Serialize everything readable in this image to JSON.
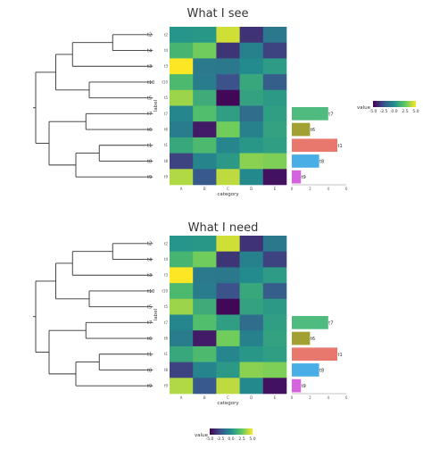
{
  "chart_data": [
    {
      "type": "heatmap",
      "title": "What I see",
      "tips": [
        "t2",
        "t4",
        "t3",
        "t10",
        "t5",
        "t7",
        "t6",
        "t1",
        "t8",
        "t9"
      ],
      "categories": [
        "A",
        "B",
        "C",
        "D",
        "E"
      ],
      "xlabel": "category",
      "ylabel": "label",
      "values": [
        [
          0.2,
          0.3,
          4.3,
          -3.5,
          -1.0
        ],
        [
          1.6,
          2.8,
          -3.4,
          -0.6,
          -3.0
        ],
        [
          5.5,
          -0.9,
          -1.0,
          -0.2,
          0.5
        ],
        [
          1.8,
          -0.8,
          -2.5,
          1.0,
          -2.0
        ],
        [
          3.5,
          1.2,
          -4.8,
          0.8,
          0.4
        ],
        [
          -0.4,
          2.0,
          0.6,
          -1.4,
          0.6
        ],
        [
          -0.8,
          -4.2,
          2.8,
          -0.6,
          0.8
        ],
        [
          1.0,
          1.8,
          -0.4,
          0.3,
          0.6
        ],
        [
          -3.0,
          -0.5,
          0.4,
          3.2,
          3.0
        ],
        [
          3.8,
          -2.2,
          4.0,
          -0.3,
          -4.5
        ]
      ],
      "bars": {
        "type": "bar",
        "labels": [
          "t7",
          "t6",
          "t1",
          "t8",
          "t9"
        ],
        "values": [
          4,
          2,
          5,
          3,
          1
        ],
        "colors": [
          "#4fbb7e",
          "#a1a132",
          "#e8776e",
          "#4aaee6",
          "#d762e0"
        ],
        "xticks": [
          "0",
          "2",
          "4",
          "6"
        ],
        "xlim": [
          0,
          6
        ]
      },
      "legend": {
        "title": "value",
        "ticks": [
          "-5.0",
          "-2.5",
          "0.0",
          "2.5",
          "5.0"
        ],
        "placement": "right"
      }
    },
    {
      "type": "heatmap",
      "title": "What I need",
      "tips": [
        "t2",
        "t4",
        "t3",
        "t10",
        "t5",
        "t7",
        "t6",
        "t1",
        "t8",
        "t9"
      ],
      "categories": [
        "A",
        "B",
        "C",
        "D",
        "E"
      ],
      "xlabel": "category",
      "ylabel": "label",
      "values": [
        [
          0.2,
          0.3,
          4.3,
          -3.5,
          -1.0
        ],
        [
          1.6,
          2.8,
          -3.4,
          -0.6,
          -3.0
        ],
        [
          5.5,
          -0.9,
          -1.0,
          -0.2,
          0.5
        ],
        [
          1.8,
          -0.8,
          -2.5,
          1.0,
          -2.0
        ],
        [
          3.5,
          1.2,
          -4.8,
          0.8,
          0.4
        ],
        [
          -0.4,
          2.0,
          0.6,
          -1.4,
          0.6
        ],
        [
          -0.8,
          -4.2,
          2.8,
          -0.6,
          0.8
        ],
        [
          1.0,
          1.8,
          -0.4,
          0.3,
          0.6
        ],
        [
          -3.0,
          -0.5,
          0.4,
          3.2,
          3.0
        ],
        [
          3.8,
          -2.2,
          4.0,
          -0.3,
          -4.5
        ]
      ],
      "bars": {
        "type": "bar",
        "labels": [
          "t7",
          "t6",
          "t1",
          "t8",
          "t9"
        ],
        "values": [
          4,
          2,
          5,
          3,
          1
        ],
        "colors": [
          "#4fbb7e",
          "#a1a132",
          "#e8776e",
          "#4aaee6",
          "#d762e0"
        ],
        "xticks": [
          "0",
          "2",
          "4",
          "6"
        ],
        "xlim": [
          0,
          6
        ]
      },
      "legend": {
        "title": "value",
        "ticks": [
          "-5.0",
          "-2.5",
          "0.0",
          "2.5",
          "5.0"
        ],
        "placement": "bottom"
      }
    }
  ]
}
